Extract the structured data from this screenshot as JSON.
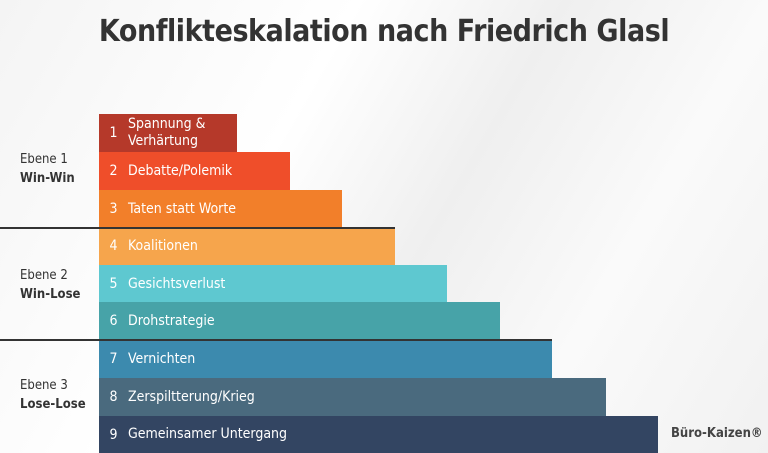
{
  "title": "Konflikteskalation nach Friedrich Glasl",
  "levels": [
    {
      "name": "Ebene 1",
      "type": "Win-Win"
    },
    {
      "name": "Ebene 2",
      "type": "Win-Lose"
    },
    {
      "name": "Ebene 3",
      "type": "Lose-Lose"
    }
  ],
  "stages": [
    {
      "num": "1",
      "label": "Spannung & Verhärtung",
      "color": "#b5392a"
    },
    {
      "num": "2",
      "label": "Debatte/Polemik",
      "color": "#ef4e2a"
    },
    {
      "num": "3",
      "label": "Taten statt Worte",
      "color": "#f27f2a"
    },
    {
      "num": "4",
      "label": "Koalitionen",
      "color": "#f6a54c"
    },
    {
      "num": "5",
      "label": "Gesichtsverlust",
      "color": "#5ec8d0"
    },
    {
      "num": "6",
      "label": "Drohstrategie",
      "color": "#47a3a8"
    },
    {
      "num": "7",
      "label": "Vernichten",
      "color": "#3c8aae"
    },
    {
      "num": "8",
      "label": "Zerspiltterung/Krieg",
      "color": "#4a6a7e"
    },
    {
      "num": "9",
      "label": "Gemeinsamer Untergang",
      "color": "#334562"
    }
  ],
  "brand": "Büro-Kaizen®"
}
